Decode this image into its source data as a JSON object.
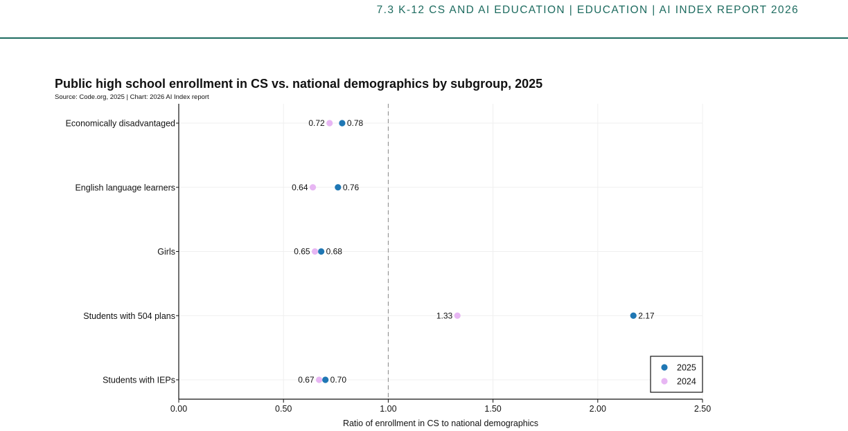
{
  "header": {
    "text": "7.3 K-12 CS AND AI EDUCATION  |  EDUCATION  |  AI INDEX REPORT 2026",
    "color": "#1d6b5f"
  },
  "chart_data": {
    "type": "scatter",
    "title": "Public high school enrollment in CS vs. national demographics by subgroup, 2025",
    "subtitle": "Source: Code.org, 2025 | Chart: 2026 AI Index report",
    "xlabel": "Ratio of enrollment in CS to national demographics",
    "ylabel": "",
    "xlim": [
      0,
      2.5
    ],
    "x_ticks": [
      "0.00",
      "0.50",
      "1.00",
      "1.50",
      "2.00",
      "2.50"
    ],
    "reference_line": 1.0,
    "grid": true,
    "legend_position": "bottom-right",
    "categories": [
      "Economically disadvantaged",
      "English language learners",
      "Girls",
      "Students with 504 plans",
      "Students with IEPs"
    ],
    "series": [
      {
        "name": "2025",
        "color": "#1f77b4",
        "values": [
          0.78,
          0.76,
          0.68,
          2.17,
          0.7
        ],
        "labels": [
          "0.78",
          "0.76",
          "0.68",
          "2.17",
          "0.70"
        ]
      },
      {
        "name": "2024",
        "color": "#e7b6f3",
        "values": [
          0.72,
          0.64,
          0.65,
          1.33,
          0.67
        ],
        "labels": [
          "0.72",
          "0.64",
          "0.65",
          "1.33",
          "0.67"
        ]
      }
    ]
  }
}
